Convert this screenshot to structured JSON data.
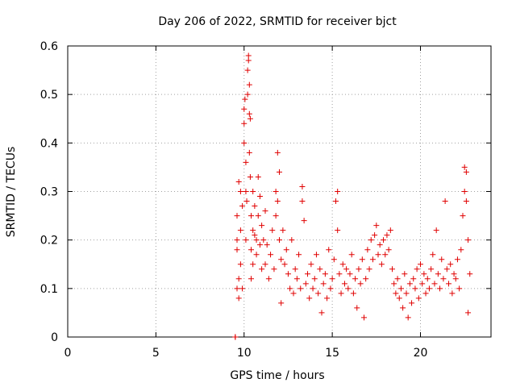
{
  "chart_data": {
    "type": "scatter",
    "title": "Day 206 of 2022, SRMTID for receiver bjct",
    "xlabel": "GPS time / hours",
    "ylabel": "SRMTID / TECUs",
    "xlim": [
      0,
      24
    ],
    "ylim": [
      0,
      0.6
    ],
    "xticks": [
      0,
      5,
      10,
      15,
      20
    ],
    "xtick_labels": [
      "0",
      "5",
      "10",
      "15",
      "20"
    ],
    "yticks": [
      0,
      0.1,
      0.2,
      0.3,
      0.4,
      0.5,
      0.6
    ],
    "ytick_labels": [
      "0",
      "0.1",
      "0.2",
      "0.3",
      "0.4",
      "0.5",
      "0.6"
    ],
    "grid": true,
    "marker": "+",
    "series": [
      {
        "name": "SRMTID",
        "color": "#e00000",
        "points": [
          [
            9.5,
            0.0
          ],
          [
            9.5,
            0.0
          ],
          [
            9.6,
            0.1
          ],
          [
            9.6,
            0.18
          ],
          [
            9.6,
            0.2
          ],
          [
            9.6,
            0.25
          ],
          [
            9.7,
            0.32
          ],
          [
            9.7,
            0.12
          ],
          [
            9.7,
            0.08
          ],
          [
            9.8,
            0.22
          ],
          [
            9.8,
            0.3
          ],
          [
            9.8,
            0.15
          ],
          [
            9.9,
            0.27
          ],
          [
            9.9,
            0.1
          ],
          [
            10.0,
            0.4
          ],
          [
            10.0,
            0.47
          ],
          [
            10.0,
            0.44
          ],
          [
            10.05,
            0.49
          ],
          [
            10.1,
            0.36
          ],
          [
            10.1,
            0.2
          ],
          [
            10.1,
            0.3
          ],
          [
            10.15,
            0.28
          ],
          [
            10.2,
            0.55
          ],
          [
            10.2,
            0.5
          ],
          [
            10.25,
            0.58
          ],
          [
            10.25,
            0.57
          ],
          [
            10.3,
            0.52
          ],
          [
            10.3,
            0.46
          ],
          [
            10.3,
            0.38
          ],
          [
            10.35,
            0.45
          ],
          [
            10.35,
            0.33
          ],
          [
            10.4,
            0.25
          ],
          [
            10.4,
            0.18
          ],
          [
            10.4,
            0.12
          ],
          [
            10.5,
            0.3
          ],
          [
            10.5,
            0.22
          ],
          [
            10.5,
            0.15
          ],
          [
            10.6,
            0.21
          ],
          [
            10.6,
            0.27
          ],
          [
            10.7,
            0.2
          ],
          [
            10.7,
            0.17
          ],
          [
            10.8,
            0.33
          ],
          [
            10.8,
            0.25
          ],
          [
            10.9,
            0.29
          ],
          [
            10.9,
            0.19
          ],
          [
            11.0,
            0.23
          ],
          [
            11.0,
            0.14
          ],
          [
            11.1,
            0.2
          ],
          [
            11.2,
            0.26
          ],
          [
            11.2,
            0.15
          ],
          [
            11.3,
            0.19
          ],
          [
            11.4,
            0.12
          ],
          [
            11.5,
            0.17
          ],
          [
            11.6,
            0.22
          ],
          [
            11.7,
            0.14
          ],
          [
            11.8,
            0.3
          ],
          [
            11.8,
            0.25
          ],
          [
            11.9,
            0.28
          ],
          [
            11.9,
            0.38
          ],
          [
            12.0,
            0.34
          ],
          [
            12.0,
            0.2
          ],
          [
            12.1,
            0.16
          ],
          [
            12.1,
            0.07
          ],
          [
            12.2,
            0.22
          ],
          [
            12.3,
            0.15
          ],
          [
            12.4,
            0.18
          ],
          [
            12.5,
            0.13
          ],
          [
            12.6,
            0.1
          ],
          [
            12.7,
            0.2
          ],
          [
            12.8,
            0.09
          ],
          [
            12.9,
            0.14
          ],
          [
            13.0,
            0.12
          ],
          [
            13.1,
            0.17
          ],
          [
            13.2,
            0.1
          ],
          [
            13.3,
            0.28
          ],
          [
            13.3,
            0.31
          ],
          [
            13.4,
            0.24
          ],
          [
            13.5,
            0.11
          ],
          [
            13.6,
            0.13
          ],
          [
            13.7,
            0.08
          ],
          [
            13.8,
            0.15
          ],
          [
            13.9,
            0.1
          ],
          [
            14.0,
            0.12
          ],
          [
            14.1,
            0.17
          ],
          [
            14.2,
            0.09
          ],
          [
            14.3,
            0.14
          ],
          [
            14.4,
            0.05
          ],
          [
            14.5,
            0.11
          ],
          [
            14.6,
            0.13
          ],
          [
            14.7,
            0.08
          ],
          [
            14.8,
            0.18
          ],
          [
            14.9,
            0.1
          ],
          [
            15.0,
            0.12
          ],
          [
            15.1,
            0.16
          ],
          [
            15.2,
            0.28
          ],
          [
            15.3,
            0.3
          ],
          [
            15.3,
            0.22
          ],
          [
            15.4,
            0.13
          ],
          [
            15.5,
            0.09
          ],
          [
            15.6,
            0.15
          ],
          [
            15.7,
            0.11
          ],
          [
            15.8,
            0.14
          ],
          [
            15.9,
            0.1
          ],
          [
            16.0,
            0.13
          ],
          [
            16.1,
            0.17
          ],
          [
            16.2,
            0.09
          ],
          [
            16.3,
            0.12
          ],
          [
            16.4,
            0.06
          ],
          [
            16.5,
            0.14
          ],
          [
            16.6,
            0.11
          ],
          [
            16.7,
            0.16
          ],
          [
            16.8,
            0.04
          ],
          [
            16.9,
            0.12
          ],
          [
            17.0,
            0.18
          ],
          [
            17.1,
            0.14
          ],
          [
            17.2,
            0.2
          ],
          [
            17.3,
            0.16
          ],
          [
            17.4,
            0.21
          ],
          [
            17.5,
            0.23
          ],
          [
            17.6,
            0.17
          ],
          [
            17.7,
            0.19
          ],
          [
            17.8,
            0.15
          ],
          [
            17.9,
            0.2
          ],
          [
            18.0,
            0.17
          ],
          [
            18.1,
            0.21
          ],
          [
            18.2,
            0.18
          ],
          [
            18.3,
            0.22
          ],
          [
            18.4,
            0.14
          ],
          [
            18.5,
            0.11
          ],
          [
            18.6,
            0.09
          ],
          [
            18.7,
            0.12
          ],
          [
            18.8,
            0.08
          ],
          [
            18.9,
            0.1
          ],
          [
            19.0,
            0.06
          ],
          [
            19.1,
            0.13
          ],
          [
            19.2,
            0.09
          ],
          [
            19.3,
            0.04
          ],
          [
            19.4,
            0.11
          ],
          [
            19.5,
            0.07
          ],
          [
            19.6,
            0.12
          ],
          [
            19.7,
            0.1
          ],
          [
            19.8,
            0.14
          ],
          [
            19.9,
            0.08
          ],
          [
            20.0,
            0.15
          ],
          [
            20.1,
            0.11
          ],
          [
            20.2,
            0.13
          ],
          [
            20.3,
            0.09
          ],
          [
            20.4,
            0.12
          ],
          [
            20.5,
            0.1
          ],
          [
            20.6,
            0.14
          ],
          [
            20.7,
            0.17
          ],
          [
            20.8,
            0.11
          ],
          [
            20.9,
            0.22
          ],
          [
            21.0,
            0.13
          ],
          [
            21.1,
            0.1
          ],
          [
            21.2,
            0.16
          ],
          [
            21.3,
            0.12
          ],
          [
            21.4,
            0.28
          ],
          [
            21.5,
            0.14
          ],
          [
            21.6,
            0.11
          ],
          [
            21.7,
            0.15
          ],
          [
            21.8,
            0.09
          ],
          [
            21.9,
            0.13
          ],
          [
            22.0,
            0.12
          ],
          [
            22.1,
            0.16
          ],
          [
            22.2,
            0.1
          ],
          [
            22.3,
            0.18
          ],
          [
            22.4,
            0.25
          ],
          [
            22.5,
            0.3
          ],
          [
            22.5,
            0.35
          ],
          [
            22.6,
            0.28
          ],
          [
            22.6,
            0.34
          ],
          [
            22.7,
            0.2
          ],
          [
            22.7,
            0.05
          ],
          [
            22.8,
            0.13
          ]
        ]
      }
    ]
  }
}
